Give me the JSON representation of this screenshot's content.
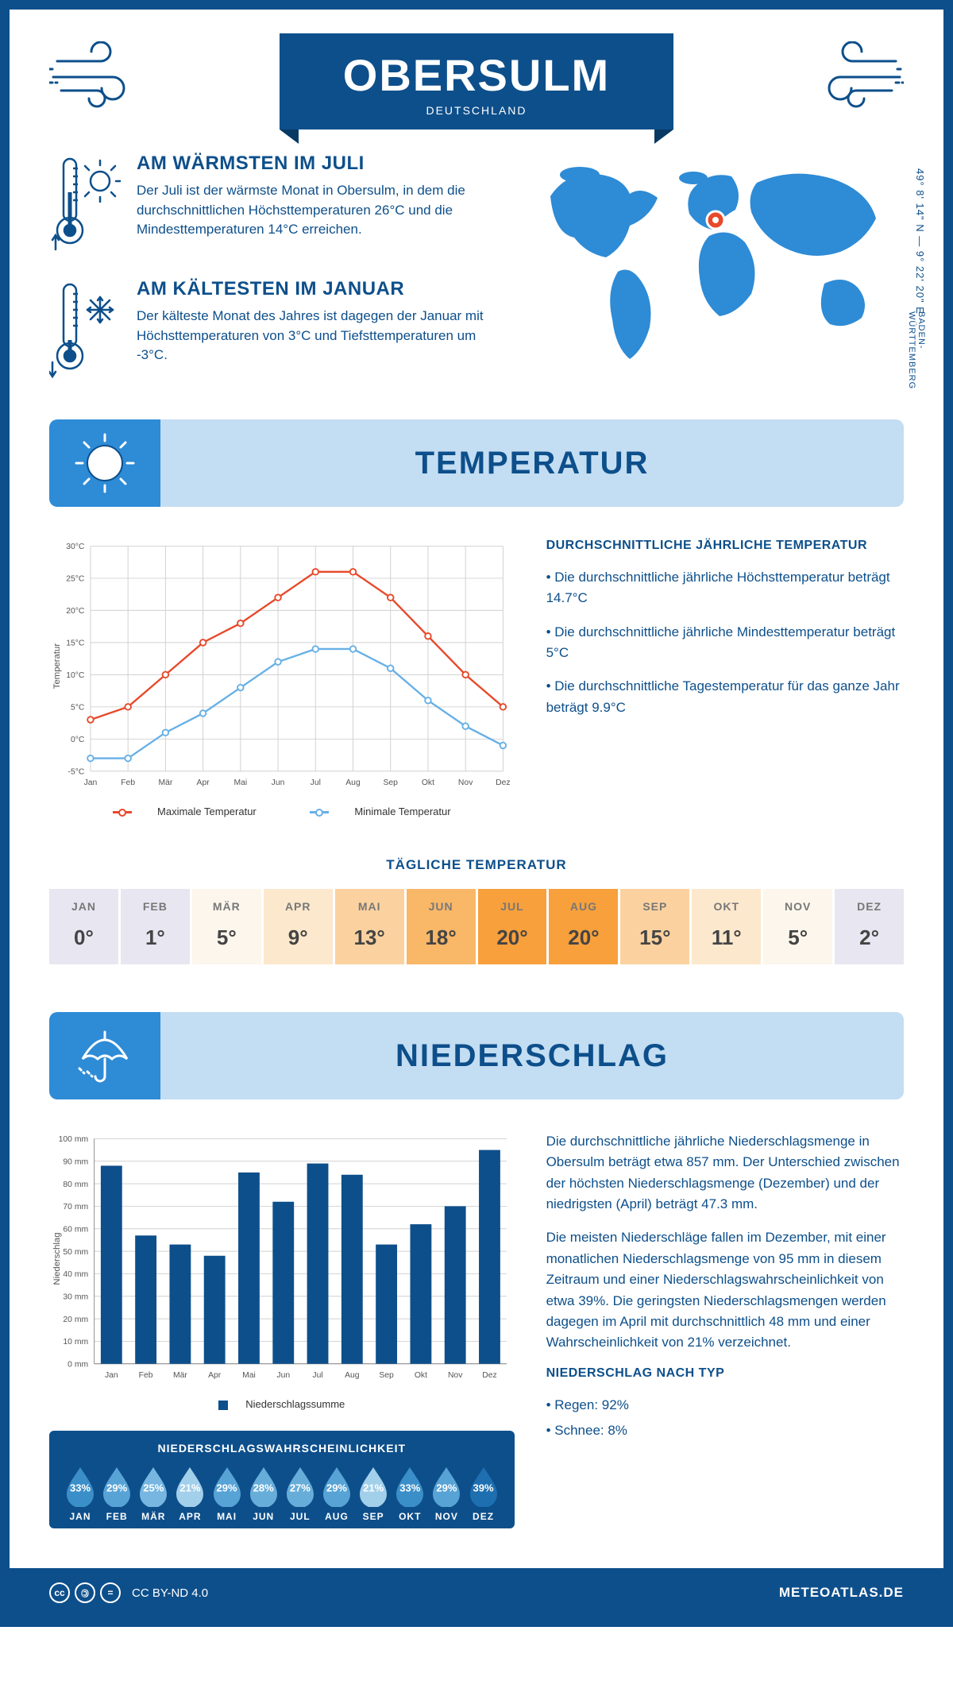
{
  "header": {
    "title": "OBERSULM",
    "subtitle": "DEUTSCHLAND"
  },
  "location": {
    "coords": "49° 8' 14\" N — 9° 22' 20\" E",
    "region": "BADEN-WÜRTTEMBERG",
    "marker_color": "#e8492a"
  },
  "facts": {
    "warm": {
      "title": "AM WÄRMSTEN IM JULI",
      "text": "Der Juli ist der wärmste Monat in Obersulm, in dem die durchschnittlichen Höchsttemperaturen 26°C und die Mindesttemperaturen 14°C erreichen."
    },
    "cold": {
      "title": "AM KÄLTESTEN IM JANUAR",
      "text": "Der kälteste Monat des Jahres ist dagegen der Januar mit Höchsttemperaturen von 3°C und Tiefsttemperaturen um -3°C."
    }
  },
  "sections": {
    "temp": "TEMPERATUR",
    "precip": "NIEDERSCHLAG"
  },
  "months": [
    "Jan",
    "Feb",
    "Mär",
    "Apr",
    "Mai",
    "Jun",
    "Jul",
    "Aug",
    "Sep",
    "Okt",
    "Nov",
    "Dez"
  ],
  "months_upper": [
    "JAN",
    "FEB",
    "MÄR",
    "APR",
    "MAI",
    "JUN",
    "JUL",
    "AUG",
    "SEP",
    "OKT",
    "NOV",
    "DEZ"
  ],
  "temp_chart": {
    "type": "line",
    "y_axis_title": "Temperatur",
    "y_ticks": [
      -5,
      0,
      5,
      10,
      15,
      20,
      25,
      30
    ],
    "y_tick_labels": [
      "-5°C",
      "0°C",
      "5°C",
      "10°C",
      "15°C",
      "20°C",
      "25°C",
      "30°C"
    ],
    "ylim": [
      -5,
      30
    ],
    "series": {
      "max": {
        "label": "Maximale Temperatur",
        "color": "#e8492a",
        "values": [
          3,
          5,
          10,
          15,
          18,
          22,
          26,
          26,
          22,
          16,
          10,
          5
        ]
      },
      "min": {
        "label": "Minimale Temperatur",
        "color": "#67b0e6",
        "values": [
          -3,
          -3,
          1,
          4,
          8,
          12,
          14,
          14,
          11,
          6,
          2,
          -1
        ]
      }
    },
    "grid_color": "#d0d0d0",
    "background_color": "#ffffff"
  },
  "temp_text": {
    "heading": "DURCHSCHNITTLICHE JÄHRLICHE TEMPERATUR",
    "b1": "• Die durchschnittliche jährliche Höchsttemperatur beträgt 14.7°C",
    "b2": "• Die durchschnittliche jährliche Mindesttemperatur beträgt 5°C",
    "b3": "• Die durchschnittliche Tagestemperatur für das ganze Jahr beträgt 9.9°C"
  },
  "daily_temp": {
    "title": "TÄGLICHE TEMPERATUR",
    "values": [
      "0°",
      "1°",
      "5°",
      "9°",
      "13°",
      "18°",
      "20°",
      "20°",
      "15°",
      "11°",
      "5°",
      "2°"
    ],
    "colors": [
      "#e8e6f0",
      "#e8e6f0",
      "#fdf6ec",
      "#fce8cd",
      "#fbd29f",
      "#f9b768",
      "#f7a03c",
      "#f7a03c",
      "#fbd29f",
      "#fce8cd",
      "#fdf6ec",
      "#e8e6f0"
    ]
  },
  "precip_chart": {
    "type": "bar",
    "y_axis_title": "Niederschlag",
    "y_ticks": [
      0,
      10,
      20,
      30,
      40,
      50,
      60,
      70,
      80,
      90,
      100
    ],
    "y_tick_labels": [
      "0 mm",
      "10 mm",
      "20 mm",
      "30 mm",
      "40 mm",
      "50 mm",
      "60 mm",
      "70 mm",
      "80 mm",
      "90 mm",
      "100 mm"
    ],
    "ylim": [
      0,
      100
    ],
    "values": [
      88,
      57,
      53,
      48,
      85,
      72,
      89,
      84,
      53,
      62,
      70,
      95
    ],
    "legend": "Niederschlagssumme",
    "bar_color": "#0d4f8b"
  },
  "precip_text": {
    "p1": "Die durchschnittliche jährliche Niederschlagsmenge in Obersulm beträgt etwa 857 mm. Der Unterschied zwischen der höchsten Niederschlagsmenge (Dezember) und der niedrigsten (April) beträgt 47.3 mm.",
    "p2": "Die meisten Niederschläge fallen im Dezember, mit einer monatlichen Niederschlagsmenge von 95 mm in diesem Zeitraum und einer Niederschlagswahrscheinlichkeit von etwa 39%. Die geringsten Niederschlagsmengen werden dagegen im April mit durchschnittlich 48 mm und einer Wahrscheinlichkeit von 21% verzeichnet.",
    "type_heading": "NIEDERSCHLAG NACH TYP",
    "type_b1": "• Regen: 92%",
    "type_b2": "• Schnee: 8%"
  },
  "probability": {
    "title": "NIEDERSCHLAGSWAHRSCHEINLICHKEIT",
    "values": [
      "33%",
      "29%",
      "25%",
      "21%",
      "29%",
      "28%",
      "27%",
      "29%",
      "21%",
      "33%",
      "29%",
      "39%"
    ],
    "colors": [
      "#3b8fc9",
      "#58a3d6",
      "#76b6e0",
      "#a2cfea",
      "#58a3d6",
      "#67add9",
      "#67add9",
      "#58a3d6",
      "#a2cfea",
      "#3b8fc9",
      "#58a3d6",
      "#1e6fb0"
    ]
  },
  "footer": {
    "license": "CC BY-ND 4.0",
    "site": "METEOATLAS.DE"
  },
  "colors": {
    "primary": "#0d4f8b",
    "light_blue": "#c3ddf2",
    "section_icon_bg": "#2e8bd6",
    "map_fill": "#2e8bd6"
  }
}
